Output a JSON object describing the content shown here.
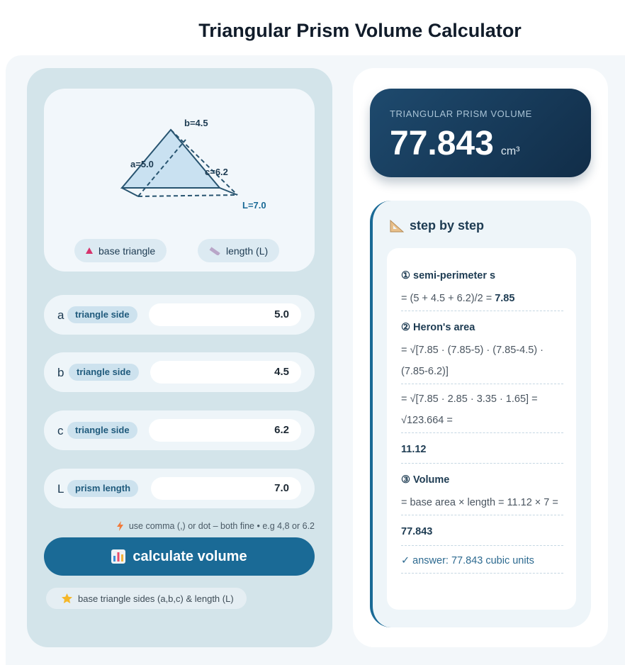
{
  "header": {
    "title": "Triangular Prism Volume Calculator"
  },
  "diagram": {
    "labels": {
      "b": "b=4.5",
      "a": "a=5.0",
      "c": "c=6.2",
      "L": "L=7.0"
    },
    "chips": [
      "base triangle",
      "length (L)"
    ]
  },
  "inputs": [
    {
      "letter": "a",
      "tag": "triangle side",
      "value": "5.0"
    },
    {
      "letter": "b",
      "tag": "triangle side",
      "value": "4.5"
    },
    {
      "letter": "c",
      "tag": "triangle side",
      "value": "6.2"
    },
    {
      "letter": "L",
      "tag": "prism length",
      "value": "7.0"
    }
  ],
  "hint": "use comma (,) or dot – both fine • e.g 4,8 or 6.2",
  "button": "calculate volume",
  "footer_note": "base triangle sides (a,b,c) & length (L)",
  "result": {
    "label": "TRIANGULAR PRISM VOLUME",
    "value": "77.843",
    "unit": "cm³"
  },
  "steps": {
    "heading": "step by step",
    "items": [
      {
        "title": "① semi-perimeter s",
        "lines": [
          "= (5 + 4.5 + 6.2)/2 ="
        ],
        "result": "7.85"
      },
      {
        "title": "② Heron's area",
        "lines": [
          "= √[7.85 · (7.85-5) · (7.85-4.5) · (7.85-6.2)]",
          "= √[7.85 · 2.85 · 3.35 · 1.65] = √123.664 ="
        ],
        "result": "11.12"
      },
      {
        "title": "③ Volume",
        "lines": [
          "= base area × length = 11.12 × 7 ="
        ],
        "result": "77.843"
      }
    ],
    "answer": "✓ answer: 77.843 cubic units"
  }
}
